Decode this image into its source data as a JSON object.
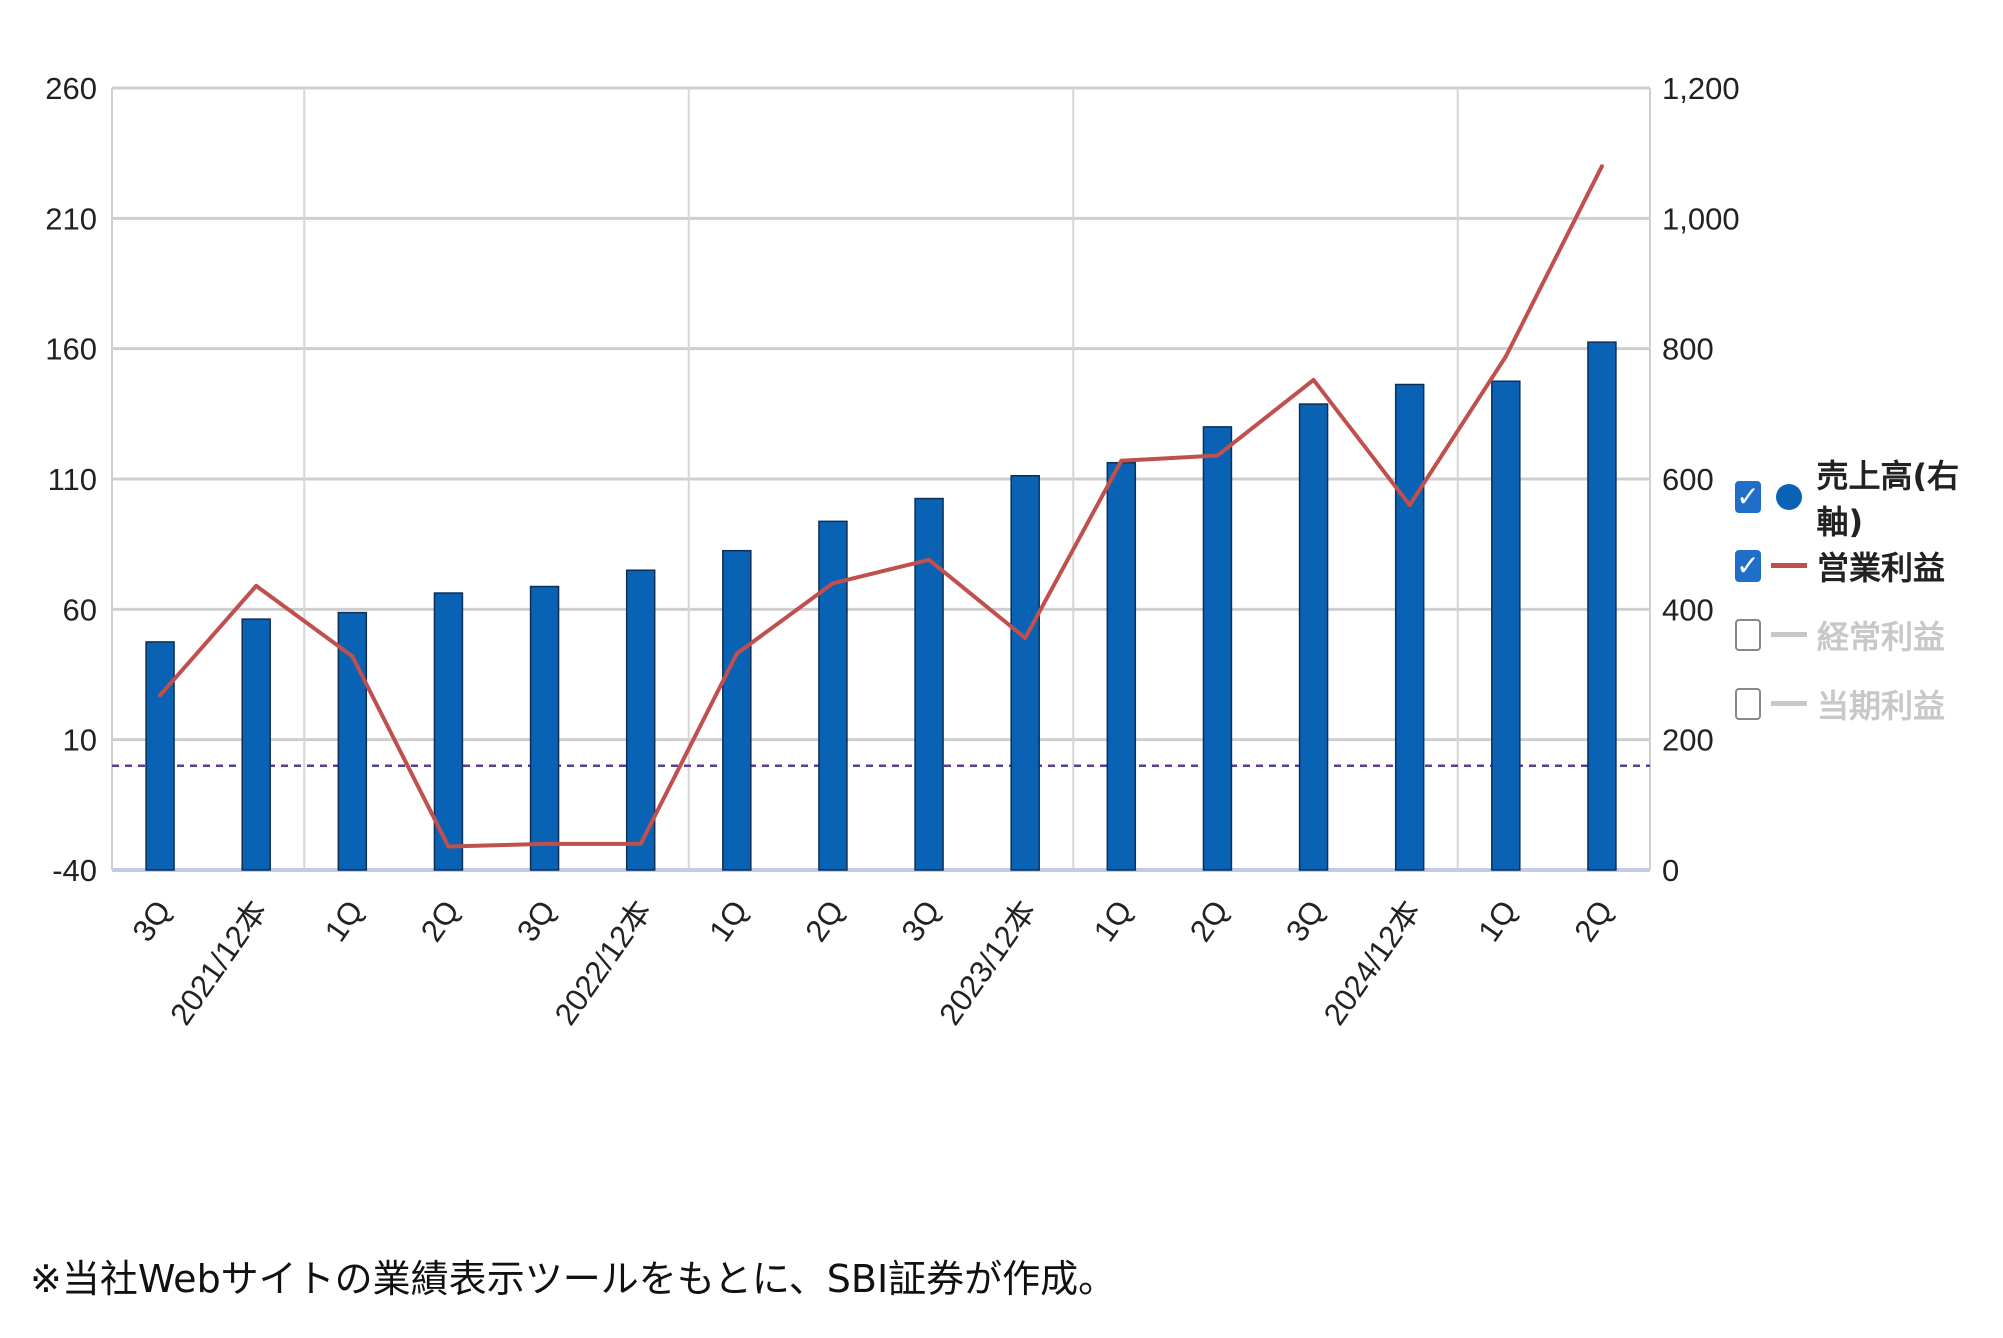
{
  "chart_data": {
    "type": "bar",
    "categories": [
      "3Q",
      "2021/12本",
      "1Q",
      "2Q",
      "3Q",
      "2022/12本",
      "1Q",
      "2Q",
      "3Q",
      "2023/12本",
      "1Q",
      "2Q",
      "3Q",
      "2024/12本",
      "1Q",
      "2Q"
    ],
    "series": [
      {
        "name": "売上高(右軸)",
        "axis": "right",
        "type": "bar",
        "color": "#0a62b4",
        "values": [
          350,
          385,
          395,
          425,
          435,
          460,
          490,
          535,
          570,
          605,
          625,
          680,
          715,
          745,
          750,
          810
        ]
      },
      {
        "name": "営業利益",
        "axis": "left",
        "type": "line",
        "color": "#c0504d",
        "values": [
          27,
          69,
          42,
          -31,
          -30,
          -30,
          43,
          70,
          79,
          49,
          117,
          119,
          148,
          100,
          157,
          230
        ]
      }
    ],
    "left_axis": {
      "ticks": [
        "260",
        "210",
        "160",
        "110",
        "60",
        "10",
        "-40"
      ],
      "ylim": [
        -40,
        260
      ]
    },
    "right_axis": {
      "ticks": [
        "1,200",
        "1,000",
        "800",
        "600",
        "400",
        "200",
        "0"
      ],
      "ylim": [
        0,
        1200
      ]
    },
    "zero_line": {
      "value": 0,
      "axis": "left",
      "color": "#5b3e8f"
    },
    "grid": true,
    "legend_position": "right"
  },
  "legend": {
    "items": [
      {
        "label": "売上高(右軸)",
        "checked": true,
        "symbol": "dot",
        "color": "#0a62b4",
        "text_color": "#222222"
      },
      {
        "label": "営業利益",
        "checked": true,
        "symbol": "line",
        "color": "#c0504d",
        "text_color": "#222222"
      },
      {
        "label": "経常利益",
        "checked": false,
        "symbol": "line",
        "color": "#c8c8c8",
        "text_color": "#c8c8c8"
      },
      {
        "label": "当期利益",
        "checked": false,
        "symbol": "line",
        "color": "#c8c8c8",
        "text_color": "#c8c8c8"
      }
    ]
  },
  "footnote": "※当社Webサイトの業績表示ツールをもとに、SBI証券が作成。"
}
